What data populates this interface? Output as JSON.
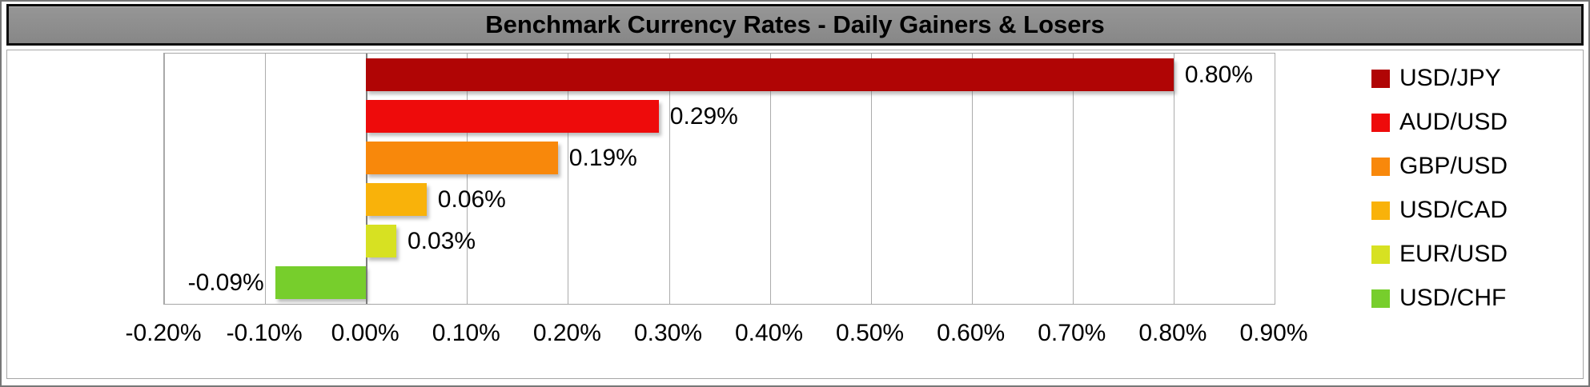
{
  "title_bar": {
    "text": "Benchmark Currency Rates - Daily Gainers & Losers"
  },
  "chart_data": {
    "type": "bar",
    "orientation": "horizontal",
    "title": "Benchmark Currency Rates - Daily Gainers & Losers",
    "categories": [
      "USD/JPY",
      "AUD/USD",
      "GBP/USD",
      "USD/CAD",
      "EUR/USD",
      "USD/CHF"
    ],
    "values": [
      0.8,
      0.29,
      0.19,
      0.06,
      0.03,
      -0.09
    ],
    "value_labels": [
      "0.80%",
      "0.29%",
      "0.19%",
      "0.06%",
      "0.03%",
      "-0.09%"
    ],
    "bar_colors": [
      "#B00505",
      "#EE0B0B",
      "#F8880B",
      "#F9B20A",
      "#D7E122",
      "#77CE2C"
    ],
    "x_tick_labels": [
      "-0.20%",
      "-0.10%",
      "0.00%",
      "0.10%",
      "0.20%",
      "0.30%",
      "0.40%",
      "0.50%",
      "0.60%",
      "0.70%",
      "0.80%",
      "0.90%"
    ],
    "xlim": [
      -0.2,
      0.9
    ],
    "x_tick_step": 0.1,
    "unit": "percent",
    "grid": true,
    "legend_position": "right"
  },
  "colors": {
    "title_bar_bg": "#8C8C8C",
    "title_text": "#000000",
    "gridline": "#ACACAC",
    "zero_axis": "#7F7F7F",
    "plot_border": "#A6A6A6",
    "frame_border": "#777777",
    "background": "#FFFFFF"
  }
}
